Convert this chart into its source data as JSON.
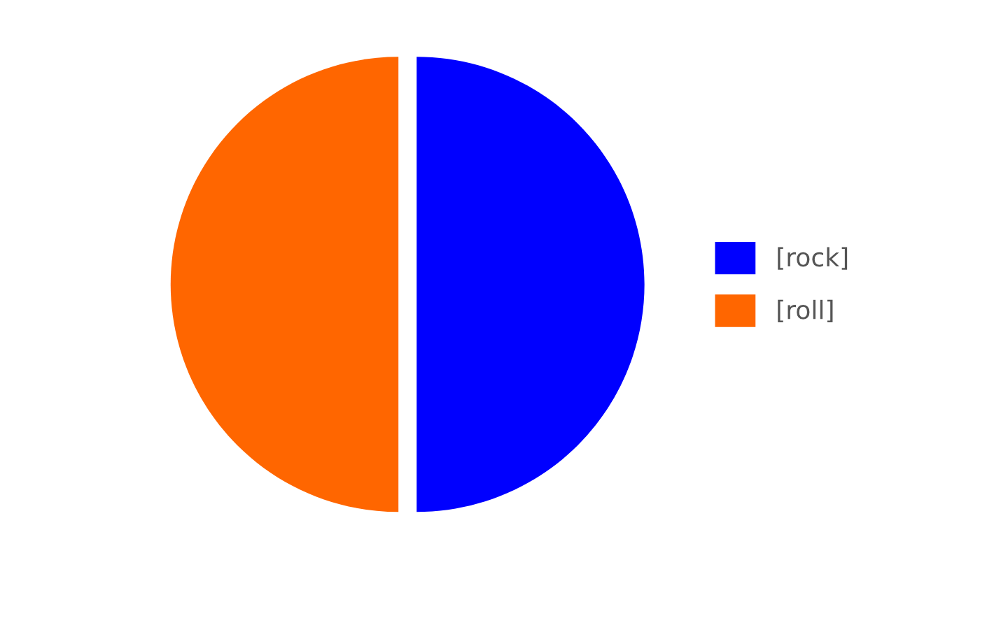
{
  "chart_data": {
    "type": "pie",
    "categories": [
      "[rock]",
      "[roll]"
    ],
    "values": [
      50,
      50
    ],
    "colors": [
      "#0000ff",
      "#ff6600"
    ],
    "legend": "right"
  }
}
